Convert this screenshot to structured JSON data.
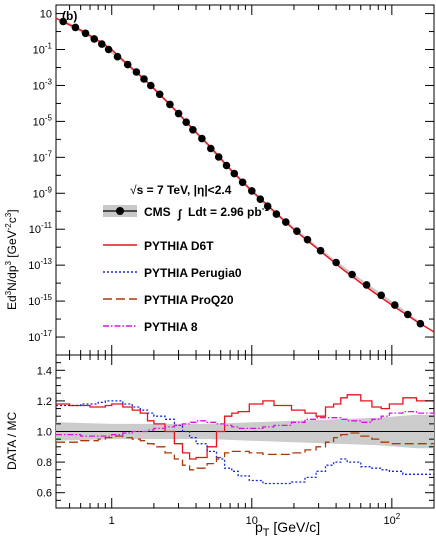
{
  "chart_data": [
    {
      "type": "scatter",
      "panel_label": "(b)",
      "xlabel": "p_T [GeV/c]",
      "ylabel": "Ed^3N/dp^3 [GeV^-2c^3]",
      "xscale": "log",
      "yscale": "log",
      "xlim": [
        0.4,
        200
      ],
      "ylim": [
        1e-18,
        30
      ],
      "x_ticks": [
        "1",
        "10",
        "10^2"
      ],
      "y_ticks": [
        "10",
        "10^-1",
        "10^-3",
        "10^-5",
        "10^-7",
        "10^-9",
        "10^-11",
        "10^-13",
        "10^-15",
        "10^-17"
      ],
      "legend": {
        "position": "center-left",
        "header": "√s = 7 TeV,  |η|<2.4",
        "entries": [
          {
            "label": "CMS",
            "extra": "∫Ldt = 2.96 pb⁻¹",
            "style": "marker-with-band",
            "color": "#000000"
          },
          {
            "label": "PYTHIA D6T",
            "style": "solid",
            "color": "#e8121c"
          },
          {
            "label": "PYTHIA Perugia0",
            "style": "dotted",
            "color": "#1428d8"
          },
          {
            "label": "PYTHIA ProQ20",
            "style": "dashed",
            "color": "#a83a0a"
          },
          {
            "label": "PYTHIA 8",
            "style": "dashdot",
            "color": "#e010e0"
          }
        ]
      },
      "series": [
        {
          "name": "CMS",
          "x": [
            0.45,
            0.55,
            0.65,
            0.75,
            0.85,
            0.95,
            1.1,
            1.3,
            1.5,
            1.7,
            1.9,
            2.2,
            2.6,
            3.0,
            3.4,
            3.8,
            4.4,
            5.1,
            5.8,
            6.6,
            7.5,
            8.6,
            10.0,
            11.5,
            13.0,
            15.0,
            17.5,
            21.0,
            25.0,
            31.0,
            40.0,
            52.0,
            66.0,
            84.0,
            105.0,
            130.0,
            160.0
          ],
          "y": [
            3.6,
            1.7,
            0.8,
            0.39,
            0.2,
            0.1,
            0.04,
            0.0145,
            0.0056,
            0.0023,
            0.001,
            0.00032,
            8.8e-05,
            2.7e-05,
            9e-06,
            3.4e-06,
            1.1e-06,
            3.1e-07,
            1.05e-07,
            3.5e-08,
            1.25e-08,
            4.1e-09,
            1.35e-09,
            4.7e-10,
            1.9e-10,
            6.9e-11,
            2.5e-11,
            7.8e-12,
            2.6e-12,
            6.4e-13,
            1.4e-13,
            3e-14,
            8e-15,
            2.1e-15,
            6e-16,
            1.8e-16,
            5.5e-17
          ]
        },
        {
          "name": "PYTHIA D6T",
          "style": "solid",
          "x": [
            0.4,
            0.5,
            0.6,
            0.8,
            1.0,
            1.3,
            1.7,
            2.2,
            3.0,
            4.0,
            5.0,
            7.0,
            10.0,
            14.0,
            20.0,
            30.0,
            45.0,
            65.0,
            100.0,
            150.0,
            200.0
          ],
          "y": [
            5.5,
            2.4,
            1.2,
            0.32,
            0.1,
            0.0145,
            0.0023,
            0.00032,
            2.7e-05,
            2.5e-06,
            4.3e-07,
            2.2e-08,
            1.35e-09,
            1.25e-10,
            9.5e-12,
            7.2e-13,
            5.5e-14,
            6.5e-15,
            6e-16,
            7.5e-17,
            1.9e-17
          ]
        }
      ]
    },
    {
      "type": "line",
      "xlabel": "p_T [GeV/c]",
      "ylabel": "DATA / MC",
      "xscale": "log",
      "xlim": [
        0.4,
        200
      ],
      "ylim": [
        0.5,
        1.5
      ],
      "y_ticks": [
        "0.6",
        "0.8",
        "1.0",
        "1.2",
        "1.4"
      ],
      "uncertainty_band": {
        "name": "CMS",
        "x": [
          0.4,
          1.0,
          2.0,
          5.0,
          10.0,
          20.0,
          40.0,
          80.0,
          150.0,
          200.0
        ],
        "low": [
          0.94,
          0.95,
          0.95,
          0.95,
          0.94,
          0.93,
          0.92,
          0.91,
          0.89,
          0.89
        ],
        "high": [
          1.06,
          1.05,
          1.05,
          1.05,
          1.06,
          1.07,
          1.08,
          1.09,
          1.11,
          1.11
        ]
      },
      "reference_line": 1.0,
      "series": [
        {
          "name": "PYTHIA D6T",
          "style": "solid",
          "x": [
            0.4,
            0.5,
            0.6,
            0.7,
            0.8,
            0.9,
            1.0,
            1.2,
            1.4,
            1.6,
            1.8,
            2.0,
            2.4,
            2.8,
            3.2,
            3.6,
            4.0,
            4.8,
            5.6,
            6.4,
            7.2,
            8.0,
            9.6,
            12.0,
            14.4,
            19.2,
            24.0,
            28.8,
            33.6,
            38.4,
            43.2,
            48.0,
            60.0,
            72.0,
            84.0,
            96.0,
            120.0,
            150.0,
            200.0
          ],
          "y": [
            1.18,
            1.17,
            1.17,
            1.16,
            1.16,
            1.17,
            1.18,
            1.16,
            1.14,
            1.12,
            1.07,
            1.05,
            1.0,
            0.92,
            0.86,
            0.82,
            0.83,
            0.9,
            1.0,
            1.1,
            1.12,
            1.13,
            1.18,
            1.2,
            1.17,
            1.14,
            1.12,
            1.1,
            1.16,
            1.18,
            1.22,
            1.24,
            1.2,
            1.16,
            1.15,
            1.18,
            1.22,
            1.2,
            1.2
          ]
        },
        {
          "name": "PYTHIA Perugia0",
          "style": "dotted",
          "x": [
            0.4,
            0.5,
            0.6,
            0.7,
            0.8,
            0.9,
            1.0,
            1.2,
            1.4,
            1.6,
            1.8,
            2.0,
            2.4,
            2.8,
            3.2,
            3.6,
            4.0,
            4.8,
            5.6,
            6.4,
            7.2,
            8.0,
            9.6,
            12.0,
            14.4,
            19.2,
            24.0,
            28.8,
            33.6,
            38.4,
            43.2,
            48.0,
            60.0,
            72.0,
            84.0,
            96.0,
            120.0,
            150.0,
            200.0
          ],
          "y": [
            1.17,
            1.17,
            1.18,
            1.18,
            1.19,
            1.2,
            1.2,
            1.18,
            1.16,
            1.14,
            1.12,
            1.1,
            1.08,
            1.04,
            1.0,
            0.96,
            0.92,
            0.87,
            0.82,
            0.76,
            0.74,
            0.71,
            0.68,
            0.66,
            0.66,
            0.67,
            0.7,
            0.74,
            0.78,
            0.8,
            0.82,
            0.8,
            0.77,
            0.76,
            0.75,
            0.74,
            0.72,
            0.72,
            0.72
          ]
        },
        {
          "name": "PYTHIA ProQ20",
          "style": "dashed",
          "x": [
            0.4,
            0.5,
            0.6,
            0.7,
            0.8,
            0.9,
            1.0,
            1.2,
            1.4,
            1.6,
            1.8,
            2.0,
            2.4,
            2.8,
            3.2,
            3.6,
            4.0,
            4.8,
            5.6,
            6.4,
            7.2,
            8.0,
            9.6,
            12.0,
            14.4,
            19.2,
            24.0,
            28.8,
            33.6,
            38.4,
            43.2,
            48.0,
            60.0,
            72.0,
            84.0,
            96.0,
            120.0,
            150.0,
            200.0
          ],
          "y": [
            0.93,
            0.93,
            0.94,
            0.94,
            0.95,
            0.96,
            0.97,
            0.96,
            0.95,
            0.94,
            0.92,
            0.9,
            0.86,
            0.82,
            0.78,
            0.75,
            0.76,
            0.79,
            0.83,
            0.86,
            0.87,
            0.87,
            0.86,
            0.85,
            0.85,
            0.86,
            0.88,
            0.9,
            0.93,
            0.96,
            0.98,
            0.99,
            0.97,
            0.95,
            0.93,
            0.92,
            0.92,
            0.92,
            0.92
          ]
        },
        {
          "name": "PYTHIA 8",
          "style": "dashdot",
          "x": [
            0.4,
            0.5,
            0.6,
            0.7,
            0.8,
            0.9,
            1.0,
            1.2,
            1.4,
            1.6,
            1.8,
            2.0,
            2.4,
            2.8,
            3.2,
            3.6,
            4.0,
            4.8,
            5.6,
            6.4,
            7.2,
            8.0,
            9.6,
            12.0,
            14.4,
            19.2,
            24.0,
            28.8,
            33.6,
            38.4,
            43.2,
            48.0,
            60.0,
            72.0,
            84.0,
            96.0,
            120.0,
            150.0,
            200.0
          ],
          "y": [
            0.98,
            0.98,
            0.97,
            0.97,
            0.97,
            0.97,
            0.98,
            0.99,
            1.0,
            1.0,
            1.01,
            1.02,
            1.03,
            1.04,
            1.05,
            1.06,
            1.07,
            1.06,
            1.05,
            1.04,
            1.03,
            1.02,
            1.02,
            1.03,
            1.04,
            1.06,
            1.08,
            1.09,
            1.09,
            1.09,
            1.08,
            1.07,
            1.06,
            1.08,
            1.1,
            1.12,
            1.13,
            1.12,
            1.1
          ]
        }
      ]
    }
  ]
}
